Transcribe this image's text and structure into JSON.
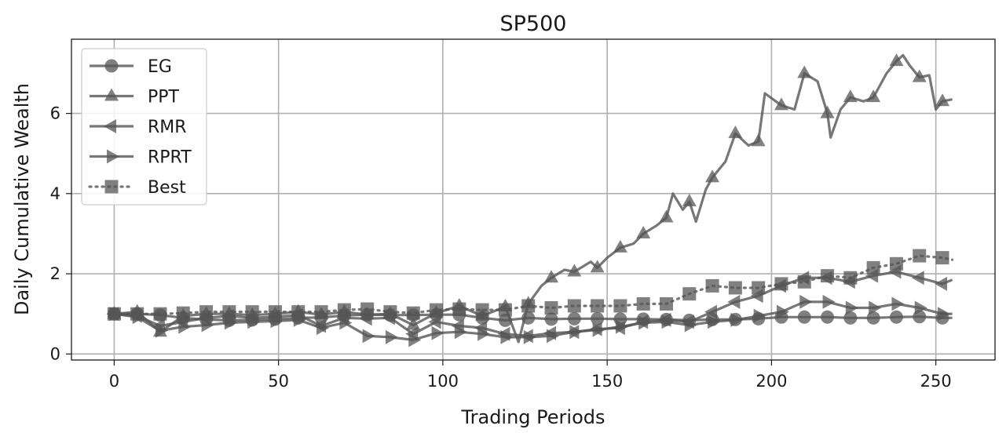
{
  "chart_data": {
    "type": "line",
    "title": "SP500",
    "xlabel": "Trading Periods",
    "ylabel": "Daily Cumulative Wealth",
    "xlim": [
      -13,
      268
    ],
    "ylim": [
      -0.15,
      7.85
    ],
    "xticks": [
      0,
      50,
      100,
      150,
      200,
      250
    ],
    "yticks": [
      0,
      2,
      4,
      6
    ],
    "grid": true,
    "legend_position": "top-left",
    "line_color": "#555555",
    "marker_every": 7,
    "series": [
      {
        "name": "EG",
        "marker": "circle",
        "linestyle": "solid",
        "points": [
          [
            0,
            1.0
          ],
          [
            7,
            1.0
          ],
          [
            14,
            0.97
          ],
          [
            21,
            0.9
          ],
          [
            28,
            0.86
          ],
          [
            35,
            0.84
          ],
          [
            42,
            0.85
          ],
          [
            49,
            0.87
          ],
          [
            56,
            0.9
          ],
          [
            63,
            0.91
          ],
          [
            70,
            0.96
          ],
          [
            77,
            0.98
          ],
          [
            84,
            0.97
          ],
          [
            91,
            0.97
          ],
          [
            98,
            0.98
          ],
          [
            105,
            0.98
          ],
          [
            112,
            0.9
          ],
          [
            119,
            0.84
          ],
          [
            126,
            0.9
          ],
          [
            133,
            0.87
          ],
          [
            140,
            0.88
          ],
          [
            147,
            0.88
          ],
          [
            154,
            0.87
          ],
          [
            161,
            0.87
          ],
          [
            168,
            0.86
          ],
          [
            175,
            0.84
          ],
          [
            182,
            0.86
          ],
          [
            189,
            0.86
          ],
          [
            196,
            0.88
          ],
          [
            203,
            0.92
          ],
          [
            210,
            0.92
          ],
          [
            217,
            0.92
          ],
          [
            224,
            0.9
          ],
          [
            231,
            0.9
          ],
          [
            238,
            0.92
          ],
          [
            245,
            0.93
          ],
          [
            252,
            0.9
          ],
          [
            255,
            0.9
          ]
        ]
      },
      {
        "name": "PPT",
        "marker": "triangle-up",
        "linestyle": "solid",
        "points": [
          [
            0,
            1.0
          ],
          [
            7,
            1.05
          ],
          [
            14,
            0.55
          ],
          [
            21,
            0.95
          ],
          [
            28,
            1.0
          ],
          [
            35,
            1.0
          ],
          [
            42,
            0.97
          ],
          [
            49,
            1.0
          ],
          [
            56,
            1.05
          ],
          [
            63,
            0.98
          ],
          [
            70,
            1.05
          ],
          [
            77,
            0.98
          ],
          [
            84,
            1.0
          ],
          [
            91,
            0.72
          ],
          [
            98,
            1.02
          ],
          [
            105,
            1.2
          ],
          [
            112,
            0.95
          ],
          [
            119,
            1.18
          ],
          [
            123,
            0.3
          ],
          [
            126,
            1.25
          ],
          [
            130,
            1.7
          ],
          [
            133,
            1.9
          ],
          [
            137,
            2.1
          ],
          [
            140,
            2.05
          ],
          [
            145,
            2.3
          ],
          [
            147,
            2.15
          ],
          [
            150,
            2.4
          ],
          [
            154,
            2.65
          ],
          [
            158,
            2.75
          ],
          [
            161,
            3.0
          ],
          [
            165,
            3.2
          ],
          [
            168,
            3.4
          ],
          [
            170,
            4.0
          ],
          [
            173,
            3.6
          ],
          [
            175,
            3.8
          ],
          [
            177,
            3.3
          ],
          [
            180,
            4.1
          ],
          [
            182,
            4.4
          ],
          [
            186,
            4.8
          ],
          [
            189,
            5.5
          ],
          [
            193,
            5.2
          ],
          [
            196,
            5.3
          ],
          [
            198,
            6.5
          ],
          [
            203,
            6.2
          ],
          [
            207,
            6.1
          ],
          [
            210,
            7.0
          ],
          [
            214,
            6.8
          ],
          [
            217,
            6.0
          ],
          [
            218,
            5.4
          ],
          [
            221,
            6.1
          ],
          [
            224,
            6.4
          ],
          [
            228,
            6.3
          ],
          [
            231,
            6.4
          ],
          [
            235,
            7.0
          ],
          [
            238,
            7.3
          ],
          [
            240,
            7.45
          ],
          [
            242,
            7.2
          ],
          [
            245,
            6.9
          ],
          [
            248,
            6.95
          ],
          [
            250,
            6.1
          ],
          [
            252,
            6.3
          ],
          [
            255,
            6.35
          ]
        ]
      },
      {
        "name": "RMR",
        "marker": "triangle-left",
        "linestyle": "solid",
        "points": [
          [
            0,
            1.0
          ],
          [
            7,
            0.95
          ],
          [
            14,
            0.7
          ],
          [
            21,
            0.8
          ],
          [
            28,
            0.9
          ],
          [
            35,
            0.95
          ],
          [
            42,
            0.9
          ],
          [
            49,
            0.93
          ],
          [
            56,
            0.97
          ],
          [
            63,
            0.7
          ],
          [
            70,
            0.9
          ],
          [
            77,
            0.88
          ],
          [
            84,
            0.9
          ],
          [
            91,
            0.5
          ],
          [
            98,
            0.8
          ],
          [
            105,
            0.7
          ],
          [
            112,
            0.65
          ],
          [
            119,
            0.5
          ],
          [
            126,
            0.45
          ],
          [
            133,
            0.52
          ],
          [
            140,
            0.55
          ],
          [
            147,
            0.62
          ],
          [
            154,
            0.65
          ],
          [
            161,
            0.8
          ],
          [
            168,
            0.85
          ],
          [
            175,
            0.8
          ],
          [
            182,
            1.05
          ],
          [
            189,
            1.3
          ],
          [
            196,
            1.45
          ],
          [
            203,
            1.7
          ],
          [
            210,
            1.9
          ],
          [
            217,
            1.9
          ],
          [
            224,
            1.8
          ],
          [
            231,
            1.95
          ],
          [
            238,
            2.05
          ],
          [
            245,
            1.9
          ],
          [
            252,
            1.75
          ],
          [
            255,
            1.85
          ]
        ]
      },
      {
        "name": "RPRT",
        "marker": "triangle-right",
        "linestyle": "solid",
        "points": [
          [
            0,
            1.0
          ],
          [
            7,
            0.92
          ],
          [
            14,
            0.58
          ],
          [
            21,
            0.68
          ],
          [
            28,
            0.72
          ],
          [
            35,
            0.78
          ],
          [
            42,
            0.8
          ],
          [
            49,
            0.82
          ],
          [
            56,
            0.85
          ],
          [
            63,
            0.65
          ],
          [
            70,
            0.78
          ],
          [
            77,
            0.45
          ],
          [
            84,
            0.42
          ],
          [
            91,
            0.35
          ],
          [
            98,
            0.52
          ],
          [
            105,
            0.55
          ],
          [
            112,
            0.5
          ],
          [
            119,
            0.42
          ],
          [
            126,
            0.42
          ],
          [
            133,
            0.45
          ],
          [
            140,
            0.55
          ],
          [
            147,
            0.6
          ],
          [
            154,
            0.68
          ],
          [
            161,
            0.78
          ],
          [
            168,
            0.8
          ],
          [
            175,
            0.72
          ],
          [
            182,
            0.8
          ],
          [
            189,
            0.85
          ],
          [
            196,
            0.95
          ],
          [
            203,
            1.05
          ],
          [
            210,
            1.3
          ],
          [
            217,
            1.3
          ],
          [
            224,
            1.15
          ],
          [
            231,
            1.15
          ],
          [
            238,
            1.25
          ],
          [
            245,
            1.15
          ],
          [
            252,
            1.0
          ],
          [
            255,
            1.0
          ]
        ]
      },
      {
        "name": "Best",
        "marker": "square",
        "linestyle": "dotted",
        "points": [
          [
            0,
            1.0
          ],
          [
            7,
            1.0
          ],
          [
            14,
            1.0
          ],
          [
            21,
            1.02
          ],
          [
            28,
            1.05
          ],
          [
            35,
            1.05
          ],
          [
            42,
            1.05
          ],
          [
            49,
            1.05
          ],
          [
            56,
            1.05
          ],
          [
            63,
            1.05
          ],
          [
            70,
            1.1
          ],
          [
            77,
            1.12
          ],
          [
            84,
            1.05
          ],
          [
            91,
            1.02
          ],
          [
            98,
            1.1
          ],
          [
            105,
            1.12
          ],
          [
            112,
            1.1
          ],
          [
            119,
            1.1
          ],
          [
            126,
            1.2
          ],
          [
            133,
            1.15
          ],
          [
            140,
            1.2
          ],
          [
            147,
            1.2
          ],
          [
            154,
            1.2
          ],
          [
            161,
            1.25
          ],
          [
            168,
            1.25
          ],
          [
            175,
            1.5
          ],
          [
            182,
            1.7
          ],
          [
            189,
            1.65
          ],
          [
            196,
            1.65
          ],
          [
            203,
            1.75
          ],
          [
            210,
            1.8
          ],
          [
            217,
            1.95
          ],
          [
            224,
            1.9
          ],
          [
            231,
            2.15
          ],
          [
            238,
            2.25
          ],
          [
            245,
            2.45
          ],
          [
            252,
            2.4
          ],
          [
            255,
            2.35
          ]
        ]
      }
    ]
  }
}
